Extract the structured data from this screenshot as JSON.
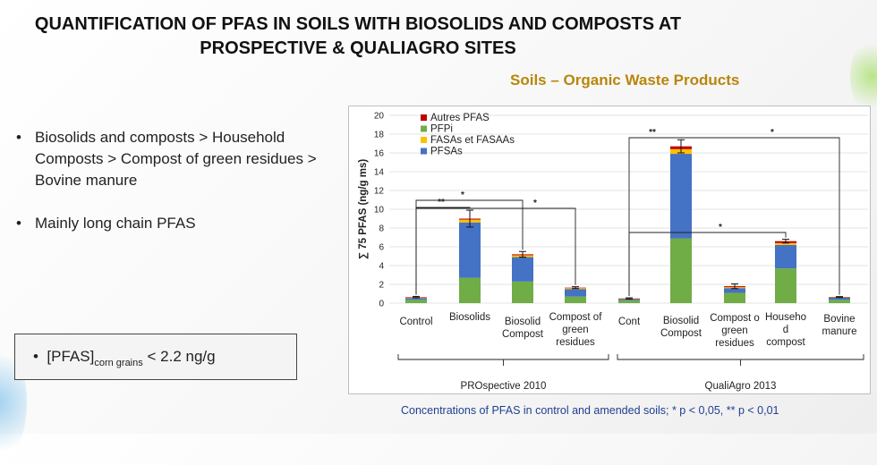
{
  "slide": {
    "title_line1": "QUANTIFICATION OF PFAS IN SOILS WITH BIOSOLIDS AND COMPOSTS AT",
    "title_line2": "PROSPECTIVE & QUALIAGRO SITES",
    "subtitle": "Soils – Organic Waste Products",
    "bullets": [
      "Biosolids and composts > Household Composts > Compost of green residues > Bovine manure",
      "Mainly long chain PFAS"
    ],
    "pfas_note": {
      "prefix": "[PFAS]",
      "subscript": "corn grains",
      "suffix": "< 2.2 ng/g"
    },
    "caption": "Concentrations of PFAS in control and amended soils; * p < 0,05, ** p < 0,01",
    "accent_title": "#b8860b",
    "accent_caption": "#1f3f8f"
  },
  "chart_data": {
    "type": "bar",
    "stacked": true,
    "ylabel": "∑ 75 PFAS (ng/g ms)",
    "ylim": [
      0,
      20
    ],
    "yticks": [
      "0",
      "2",
      "4",
      "6",
      "8",
      "10",
      "12",
      "14",
      "16",
      "18",
      "20"
    ],
    "grid": true,
    "legend_position": "top-left",
    "categories": [
      [
        "Control"
      ],
      [
        "Biosolids"
      ],
      [
        "Biosolid",
        "Compost"
      ],
      [
        "Compost of",
        "green",
        "residues"
      ],
      [
        "Cont"
      ],
      [
        "Biosolid",
        "Compost"
      ],
      [
        "Compost o",
        "green",
        "residues"
      ],
      [
        "Househo",
        "d",
        "compost"
      ],
      [
        "Bovine",
        "manure"
      ]
    ],
    "series": [
      {
        "name": "PFSAs",
        "color": "#4472c4",
        "values": [
          0.2,
          5.9,
          2.6,
          0.8,
          0.15,
          9.0,
          0.5,
          2.5,
          0.25
        ]
      },
      {
        "name": "FASAs et FASAAs",
        "color": "#ffc000",
        "values": [
          0.05,
          0.3,
          0.2,
          0.1,
          0.02,
          0.5,
          0.1,
          0.2,
          0.02
        ]
      },
      {
        "name": "PFPi",
        "color": "#70ad47",
        "values": [
          0.35,
          2.7,
          2.3,
          0.7,
          0.3,
          6.9,
          1.1,
          3.7,
          0.35
        ]
      },
      {
        "name": "Autres PFAS",
        "color": "#c00000",
        "values": [
          0.05,
          0.1,
          0.1,
          0.05,
          0.03,
          0.3,
          0.1,
          0.2,
          0.03
        ]
      }
    ],
    "legend_order": [
      "Autres PFAS",
      "PFPi",
      "FASAs et FASAAs",
      "PFSAs"
    ],
    "stack_order_bottom_up": [
      "PFPi",
      "PFSAs",
      "FASAs et FASAAs",
      "Autres PFAS"
    ],
    "error_bars": [
      0.07,
      0.9,
      0.3,
      0.1,
      0.07,
      0.7,
      0.25,
      0.2,
      0.05
    ],
    "significance": [
      {
        "from": 0,
        "to": 1,
        "label": "**"
      },
      {
        "from": 0,
        "to": 2,
        "label": "*"
      },
      {
        "from": 0,
        "to": 3,
        "label": "*"
      },
      {
        "from": 4,
        "to": 5,
        "label": "**"
      },
      {
        "from": 4,
        "to": 7,
        "label": "*"
      },
      {
        "from": 5,
        "to": 8,
        "label": "*"
      }
    ],
    "groups": [
      {
        "label": "PROspective 2010",
        "from": 0,
        "to": 3
      },
      {
        "label": "QualiAgro 2013",
        "from": 4,
        "to": 8
      }
    ]
  }
}
